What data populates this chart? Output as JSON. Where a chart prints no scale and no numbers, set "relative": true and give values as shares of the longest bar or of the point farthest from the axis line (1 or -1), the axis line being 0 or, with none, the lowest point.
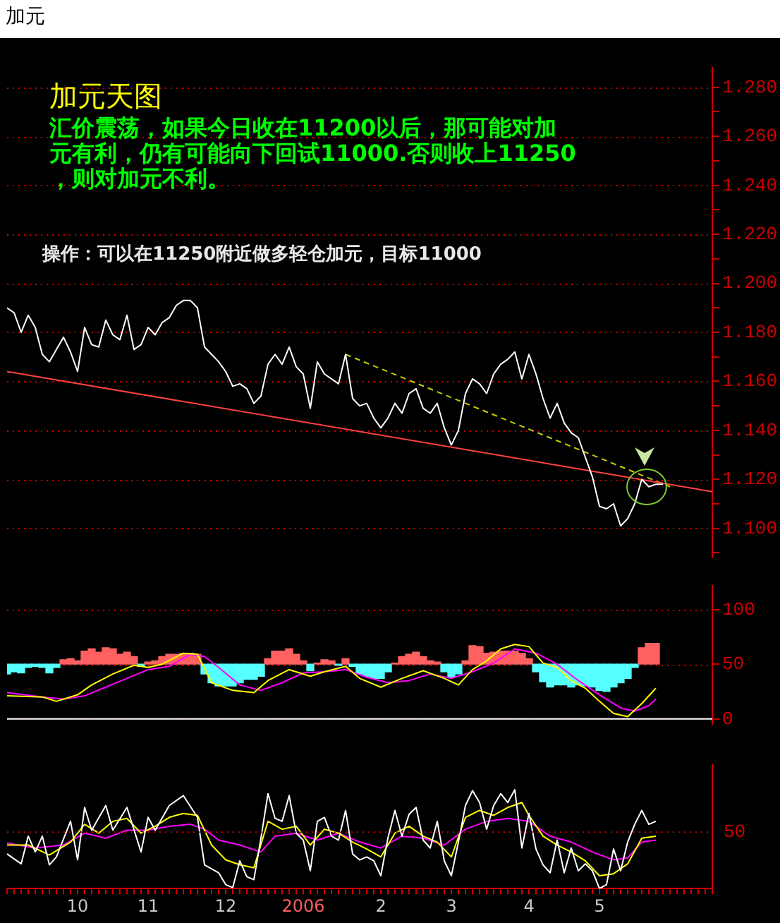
{
  "chart_data": [
    {
      "type": "line",
      "title": "加元",
      "subtitle": "加元天图",
      "annotations": [
        "汇价震荡，如果今日收在11200以后，那可能对加元有利，仍有可能向下回试11000.否则收上11250，则对加元不利。",
        "操作：可以在11250附近做多轻仓加元，目标11000"
      ],
      "categories": [
        null,
        null,
        null,
        null,
        null,
        null,
        null,
        null,
        null,
        null,
        "10",
        null,
        null,
        null,
        null,
        null,
        null,
        null,
        null,
        null,
        "11",
        null,
        null,
        null,
        null,
        null,
        null,
        null,
        null,
        null,
        null,
        "12",
        null,
        null,
        null,
        null,
        null,
        null,
        null,
        null,
        null,
        null,
        "2006",
        null,
        null,
        null,
        null,
        null,
        null,
        null,
        null,
        null,
        null,
        "2",
        null,
        null,
        null,
        null,
        null,
        null,
        null,
        null,
        null,
        "3",
        null,
        null,
        null,
        null,
        null,
        null,
        null,
        null,
        null,
        null,
        "4",
        null,
        null,
        null,
        null,
        null,
        null,
        null,
        null,
        null,
        "5",
        null,
        null,
        null,
        null,
        null,
        null,
        null,
        null,
        null,
        null,
        null,
        null,
        null,
        null,
        null,
        null
      ],
      "ylim": [
        1.088,
        1.288
      ],
      "tick_labels": "y",
      "grid": "y",
      "yticks": [
        {
          "value": 1.09,
          "label": null
        },
        {
          "value": 1.1,
          "label": "1.100"
        },
        {
          "value": 1.11,
          "label": null
        },
        {
          "value": 1.12,
          "label": "1.120"
        },
        {
          "value": 1.13,
          "label": null
        },
        {
          "value": 1.14,
          "label": "1.140"
        },
        {
          "value": 1.15,
          "label": null
        },
        {
          "value": 1.16,
          "label": "1.160"
        },
        {
          "value": 1.17,
          "label": null
        },
        {
          "value": 1.18,
          "label": "1.180"
        },
        {
          "value": 1.19,
          "label": null
        },
        {
          "value": 1.2,
          "label": "1.200"
        },
        {
          "value": 1.21,
          "label": null
        },
        {
          "value": 1.22,
          "label": "1.220"
        },
        {
          "value": 1.23,
          "label": null
        },
        {
          "value": 1.24,
          "label": "1.240"
        },
        {
          "value": 1.25,
          "label": null
        },
        {
          "value": 1.26,
          "label": "1.260"
        },
        {
          "value": 1.27,
          "label": null
        },
        {
          "value": 1.28,
          "label": "1.280"
        }
      ],
      "series": [
        {
          "color": "#ffffff",
          "values": [
            1.19,
            1.188,
            1.18,
            1.187,
            1.182,
            1.171,
            1.168,
            1.173,
            1.178,
            1.172,
            1.164,
            1.182,
            1.175,
            1.174,
            1.185,
            1.179,
            1.177,
            1.187,
            1.173,
            1.175,
            1.182,
            1.179,
            1.184,
            1.186,
            1.191,
            1.193,
            1.193,
            1.19,
            1.174,
            1.171,
            1.168,
            1.164,
            1.158,
            1.159,
            1.157,
            1.151,
            1.154,
            1.167,
            1.171,
            1.167,
            1.174,
            1.166,
            1.163,
            1.149,
            1.168,
            1.163,
            1.161,
            1.159,
            1.171,
            1.153,
            1.15,
            1.151,
            1.145,
            1.141,
            1.145,
            1.151,
            1.147,
            1.155,
            1.157,
            1.149,
            1.147,
            1.151,
            1.141,
            1.134,
            1.14,
            1.155,
            1.161,
            1.159,
            1.155,
            1.163,
            1.167,
            1.169,
            1.172,
            1.161,
            1.171,
            1.163,
            1.153,
            1.145,
            1.151,
            1.143,
            1.139,
            1.137,
            1.129,
            1.121,
            1.109,
            1.108,
            1.11,
            1.101,
            1.104,
            1.11,
            1.12,
            1.117,
            1.118,
            1.118,
            null,
            null,
            null,
            null,
            null,
            null,
            null
          ]
        },
        {
          "color": "#ff4040",
          "values": [
            1.164,
            null,
            null,
            null,
            null,
            null,
            null,
            null,
            null,
            null,
            null,
            null,
            null,
            null,
            null,
            null,
            null,
            null,
            null,
            null,
            null,
            null,
            null,
            null,
            null,
            null,
            null,
            null,
            null,
            null,
            null,
            null,
            null,
            null,
            null,
            null,
            null,
            null,
            null,
            null,
            null,
            null,
            null,
            null,
            null,
            null,
            null,
            null,
            null,
            null,
            null,
            null,
            null,
            null,
            null,
            null,
            null,
            null,
            null,
            null,
            null,
            null,
            null,
            null,
            null,
            null,
            null,
            null,
            null,
            null,
            null,
            null,
            null,
            null,
            null,
            null,
            null,
            null,
            null,
            null,
            null,
            null,
            null,
            null,
            null,
            null,
            null,
            null,
            null,
            null,
            null,
            null,
            null,
            null,
            null,
            null,
            null,
            null,
            null,
            null,
            1.115
          ]
        },
        {
          "color": "#cccc00",
          "line_style": "dashed",
          "values": [
            null,
            null,
            null,
            null,
            null,
            null,
            null,
            null,
            null,
            null,
            null,
            null,
            null,
            null,
            null,
            null,
            null,
            null,
            null,
            null,
            null,
            null,
            null,
            null,
            null,
            null,
            null,
            null,
            null,
            null,
            null,
            null,
            null,
            null,
            null,
            null,
            null,
            null,
            null,
            null,
            null,
            null,
            null,
            null,
            null,
            null,
            null,
            null,
            1.171,
            null,
            null,
            null,
            null,
            null,
            null,
            null,
            null,
            null,
            null,
            null,
            null,
            null,
            null,
            null,
            null,
            null,
            null,
            null,
            null,
            null,
            null,
            null,
            null,
            null,
            null,
            null,
            null,
            null,
            null,
            null,
            null,
            null,
            null,
            null,
            null,
            null,
            null,
            null,
            null,
            null,
            null,
            null,
            null,
            null,
            1.117,
            null,
            null,
            null,
            null,
            null,
            null
          ]
        }
      ]
    },
    {
      "type": "bar",
      "categories": [
        null,
        null,
        null,
        null,
        null,
        null,
        null,
        null,
        null,
        null,
        "10",
        null,
        null,
        null,
        null,
        null,
        null,
        null,
        null,
        null,
        "11",
        null,
        null,
        null,
        null,
        null,
        null,
        null,
        null,
        null,
        null,
        "12",
        null,
        null,
        null,
        null,
        null,
        null,
        null,
        null,
        null,
        null,
        "2006",
        null,
        null,
        null,
        null,
        null,
        null,
        null,
        null,
        null,
        null,
        "2",
        null,
        null,
        null,
        null,
        null,
        null,
        null,
        null,
        null,
        "3",
        null,
        null,
        null,
        null,
        null,
        null,
        null,
        null,
        null,
        null,
        "4",
        null,
        null,
        null,
        null,
        null,
        null,
        null,
        null,
        null,
        "5",
        null,
        null,
        null,
        null,
        null,
        null,
        null,
        null,
        null,
        null,
        null,
        null,
        null,
        null,
        null,
        null
      ],
      "ylim": [
        -5,
        122
      ],
      "yticks": [
        0,
        50,
        100
      ],
      "tick_labels": "y",
      "grid": "y",
      "ref_lines": [
        {
          "axis": "y",
          "value": 0,
          "color": "#ffffff"
        }
      ],
      "series": [
        {
          "base": [
            50,
            50,
            50,
            50,
            50,
            50,
            50,
            50,
            50,
            50,
            50,
            50,
            50,
            50,
            50,
            50,
            50,
            50,
            50,
            50,
            50,
            50,
            50,
            50,
            50,
            50,
            50,
            50,
            50,
            50,
            50,
            50,
            50,
            50,
            50,
            50,
            50,
            50,
            50,
            50,
            50,
            50,
            50,
            50,
            50,
            50,
            50,
            50,
            50,
            50,
            50,
            50,
            50,
            50,
            50,
            50,
            50,
            50,
            50,
            50,
            50,
            50,
            50,
            50,
            50,
            50,
            50,
            50,
            50,
            50,
            50,
            50,
            50,
            50,
            50,
            50,
            50,
            50,
            50,
            50,
            50,
            50,
            50,
            50,
            50,
            50,
            50,
            50,
            50,
            50,
            50,
            50,
            50,
            null,
            null,
            null,
            null,
            null,
            null,
            null,
            null
          ],
          "values": [
            -9,
            -7,
            -8,
            -3,
            -2,
            -3,
            -8,
            -3,
            4,
            5,
            3,
            12,
            14,
            11,
            15,
            14,
            9,
            11,
            7,
            -2,
            2,
            3,
            7,
            9,
            9,
            10,
            10,
            9,
            -9,
            -17,
            -20,
            -20,
            -20,
            -17,
            -14,
            -14,
            -11,
            5,
            12,
            12,
            14,
            9,
            3,
            -6,
            1,
            4,
            3,
            -1,
            5,
            -2,
            -9,
            -11,
            -13,
            -13,
            -7,
            1,
            7,
            9,
            11,
            7,
            3,
            2,
            -7,
            -12,
            -9,
            3,
            17,
            16,
            10,
            11,
            12,
            12,
            12,
            10,
            5,
            -7,
            -16,
            -21,
            -19,
            -19,
            -21,
            -19,
            -20,
            -21,
            -24,
            -25,
            -21,
            -17,
            -13,
            -3,
            15,
            19,
            19,
            null,
            null,
            null,
            null,
            null,
            null,
            null,
            null
          ],
          "colors": [
            "#55ffff",
            "#55ffff",
            "#55ffff",
            "#55ffff",
            "#55ffff",
            "#55ffff",
            "#55ffff",
            "#55ffff",
            "#ff6060",
            "#ff6060",
            "#ff6060",
            "#ff6060",
            "#ff6060",
            "#ff6060",
            "#ff6060",
            "#ff6060",
            "#ff6060",
            "#ff6060",
            "#ff6060",
            "#55ffff",
            "#ff6060",
            "#ff6060",
            "#ff6060",
            "#ff6060",
            "#ff6060",
            "#ff6060",
            "#ff6060",
            "#ff6060",
            "#55ffff",
            "#55ffff",
            "#55ffff",
            "#55ffff",
            "#55ffff",
            "#55ffff",
            "#55ffff",
            "#55ffff",
            "#55ffff",
            "#ff6060",
            "#ff6060",
            "#ff6060",
            "#ff6060",
            "#ff6060",
            "#ff6060",
            "#55ffff",
            "#ff6060",
            "#ff6060",
            "#ff6060",
            "#55ffff",
            "#ff6060",
            "#55ffff",
            "#55ffff",
            "#55ffff",
            "#55ffff",
            "#55ffff",
            "#55ffff",
            "#ff6060",
            "#ff6060",
            "#ff6060",
            "#ff6060",
            "#ff6060",
            "#ff6060",
            "#ff6060",
            "#55ffff",
            "#55ffff",
            "#55ffff",
            "#ff6060",
            "#ff6060",
            "#ff6060",
            "#ff6060",
            "#ff6060",
            "#ff6060",
            "#ff6060",
            "#ff6060",
            "#ff6060",
            "#ff6060",
            "#55ffff",
            "#55ffff",
            "#55ffff",
            "#55ffff",
            "#55ffff",
            "#55ffff",
            "#55ffff",
            "#55ffff",
            "#55ffff",
            "#55ffff",
            "#55ffff",
            "#55ffff",
            "#55ffff",
            "#55ffff",
            "#55ffff",
            "#ff6060",
            "#ff6060",
            "#ff6060",
            null,
            null,
            null,
            null,
            null,
            null,
            null,
            null
          ]
        },
        {
          "type": "line",
          "color": "#ffff00",
          "values": [
            21,
            null,
            null,
            null,
            null,
            20,
            null,
            16,
            null,
            null,
            22,
            null,
            31,
            null,
            null,
            41,
            null,
            null,
            49,
            null,
            47,
            null,
            50,
            null,
            null,
            60,
            null,
            59,
            null,
            33,
            null,
            null,
            26,
            null,
            null,
            24,
            null,
            35,
            null,
            null,
            45,
            null,
            null,
            39,
            null,
            43,
            null,
            null,
            48,
            null,
            37,
            null,
            null,
            29,
            null,
            null,
            37,
            null,
            null,
            44,
            null,
            null,
            37,
            null,
            31,
            null,
            45,
            null,
            53,
            null,
            64,
            null,
            68,
            null,
            66,
            null,
            51,
            null,
            47,
            null,
            35,
            null,
            28,
            null,
            16,
            null,
            5,
            null,
            2,
            null,
            14,
            null,
            28,
            null,
            null,
            null,
            null,
            null,
            null,
            null,
            null
          ]
        },
        {
          "type": "line",
          "color": "#ff00ff",
          "values": [
            24,
            null,
            null,
            null,
            null,
            20,
            null,
            null,
            18,
            null,
            null,
            21,
            null,
            null,
            29,
            null,
            null,
            37,
            null,
            null,
            45,
            null,
            null,
            48,
            null,
            null,
            59,
            null,
            57,
            null,
            47,
            null,
            null,
            31,
            null,
            null,
            26,
            null,
            null,
            33,
            null,
            null,
            42,
            null,
            null,
            43,
            null,
            null,
            45,
            null,
            null,
            38,
            null,
            null,
            33,
            null,
            null,
            35,
            null,
            null,
            41,
            null,
            null,
            37,
            null,
            null,
            43,
            null,
            null,
            51,
            null,
            null,
            64,
            null,
            null,
            60,
            null,
            null,
            50,
            null,
            null,
            35,
            null,
            null,
            22,
            null,
            null,
            10,
            null,
            7,
            null,
            12,
            18,
            null,
            null,
            null,
            null,
            null,
            null,
            null,
            null
          ]
        }
      ]
    },
    {
      "type": "line",
      "relative": true,
      "tick_labels": "x",
      "categories": [
        null,
        null,
        null,
        null,
        null,
        null,
        null,
        null,
        null,
        null,
        "10",
        null,
        null,
        null,
        null,
        null,
        null,
        null,
        null,
        null,
        "11",
        null,
        null,
        null,
        null,
        null,
        null,
        null,
        null,
        null,
        null,
        "12",
        null,
        null,
        null,
        null,
        null,
        null,
        null,
        null,
        null,
        null,
        "2006",
        null,
        null,
        null,
        null,
        null,
        null,
        null,
        null,
        null,
        null,
        "2",
        null,
        null,
        null,
        null,
        null,
        null,
        null,
        null,
        null,
        "3",
        null,
        null,
        null,
        null,
        null,
        null,
        null,
        null,
        null,
        null,
        "4",
        null,
        null,
        null,
        null,
        null,
        null,
        null,
        null,
        null,
        "5",
        null,
        null,
        null,
        null,
        null,
        null,
        null,
        null,
        null,
        null,
        null,
        null,
        null,
        null,
        null,
        null
      ],
      "ref_lines": [
        {
          "axis": "y",
          "value": 0.57,
          "color": "#cc0000",
          "line_style": "dotted"
        }
      ],
      "annotations": [
        "50"
      ],
      "series": [
        {
          "color": "#ffffff",
          "values": [
            0.35,
            null,
            0.25,
            0.53,
            0.37,
            0.53,
            0.24,
            0.32,
            null,
            0.68,
            0.29,
            0.82,
            0.59,
            null,
            0.84,
            0.59,
            null,
            0.82,
            null,
            0.37,
            0.72,
            0.59,
            null,
            0.84,
            null,
            0.94,
            null,
            0.72,
            0.24,
            null,
            0.16,
            0.04,
            0.01,
            0.28,
            0.12,
            0.09,
            0.51,
            0.96,
            0.71,
            0.68,
            0.94,
            0.56,
            0.49,
            0.18,
            0.68,
            0.72,
            0.53,
            0.49,
            0.79,
            0.35,
            0.29,
            0.32,
            0.28,
            0.13,
            0.51,
            0.79,
            0.53,
            0.75,
            0.82,
            0.49,
            0.41,
            0.68,
            0.28,
            0.13,
            0.47,
            0.84,
            0.99,
            0.87,
            0.6,
            0.84,
            0.96,
            0.87,
            1,
            0.41,
            0.76,
            0.4,
            0.24,
            0.16,
            0.49,
            0.16,
            0.41,
            0.18,
            0.25,
            0.18,
            0,
            0.04,
            0.4,
            0.18,
            0.47,
            0.65,
            0.79,
            0.65,
            0.68,
            null,
            null,
            null,
            null,
            null,
            null,
            null,
            null
          ]
        },
        {
          "color": "#ffff00",
          "values": [
            0.44,
            null,
            null,
            0.44,
            null,
            null,
            0.34,
            null,
            null,
            0.47,
            null,
            0.65,
            null,
            0.56,
            null,
            0.68,
            null,
            0.71,
            null,
            0.56,
            null,
            0.63,
            null,
            0.72,
            null,
            0.76,
            null,
            0.74,
            null,
            0.44,
            null,
            0.29,
            null,
            0.24,
            null,
            0.21,
            null,
            0.68,
            null,
            0.6,
            null,
            0.63,
            null,
            0.44,
            null,
            0.6,
            null,
            0.56,
            null,
            0.47,
            null,
            0.4,
            null,
            0.32,
            null,
            0.56,
            null,
            0.63,
            null,
            0.53,
            null,
            0.47,
            null,
            0.32,
            null,
            0.72,
            null,
            0.79,
            null,
            0.74,
            null,
            0.82,
            null,
            0.87,
            0.74,
            null,
            0.53,
            null,
            0.44,
            null,
            0.37,
            null,
            0.28,
            null,
            0.13,
            null,
            0.15,
            null,
            0.25,
            null,
            0.51,
            null,
            0.53,
            null,
            null,
            null,
            null,
            null,
            null,
            null,
            null
          ]
        },
        {
          "color": "#ff00ff",
          "values": [
            0.46,
            null,
            null,
            null,
            0.41,
            null,
            null,
            null,
            0.44,
            null,
            null,
            0.56,
            null,
            null,
            0.51,
            null,
            null,
            0.59,
            null,
            null,
            0.59,
            null,
            null,
            0.63,
            null,
            null,
            0.65,
            null,
            0.6,
            null,
            0.49,
            null,
            null,
            0.44,
            null,
            null,
            0.37,
            null,
            0.53,
            null,
            null,
            0.56,
            null,
            null,
            0.49,
            null,
            null,
            0.56,
            null,
            null,
            0.47,
            null,
            null,
            0.41,
            null,
            null,
            0.53,
            null,
            null,
            0.51,
            null,
            null,
            0.44,
            null,
            null,
            0.6,
            null,
            null,
            0.68,
            null,
            null,
            0.71,
            null,
            null,
            0.68,
            null,
            null,
            0.53,
            null,
            null,
            0.47,
            null,
            null,
            0.37,
            null,
            null,
            0.29,
            null,
            0.31,
            null,
            0.47,
            null,
            0.49,
            null,
            null,
            null,
            null,
            null,
            null,
            null,
            null
          ]
        }
      ]
    }
  ]
}
